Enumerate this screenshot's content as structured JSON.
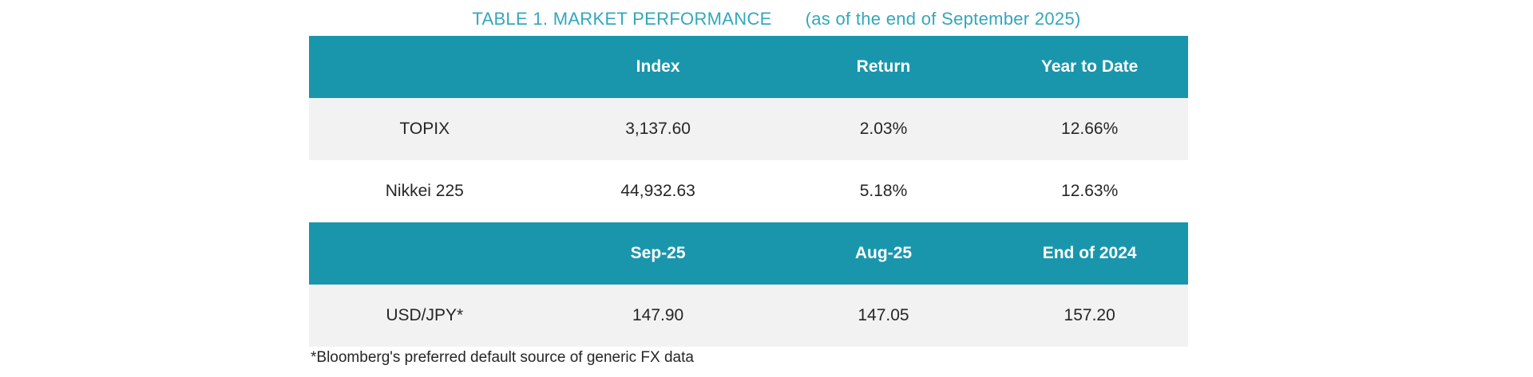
{
  "title": {
    "main": "TABLE 1. MARKET PERFORMANCE",
    "subtitle": "(as of the end of September 2025)"
  },
  "colors": {
    "header_bg": "#1A96AC",
    "title_text": "#33A7BC",
    "alt_row_bg": "#F2F2F2",
    "header_text": "#FFFFFF",
    "body_text": "#262626"
  },
  "index_table": {
    "headers": [
      "",
      "Index",
      "Return",
      "Year to Date"
    ],
    "rows": [
      {
        "label": "TOPIX",
        "index": "3,137.60",
        "return": "2.03%",
        "ytd": "12.66%"
      },
      {
        "label": "Nikkei 225",
        "index": "44,932.63",
        "return": "5.18%",
        "ytd": "12.63%"
      }
    ]
  },
  "fx_table": {
    "headers": [
      "",
      "Sep-25",
      "Aug-25",
      "End of 2024"
    ],
    "rows": [
      {
        "label": "USD/JPY*",
        "sep25": "147.90",
        "aug25": "147.05",
        "end2024": "157.20"
      }
    ]
  },
  "footnote": "*Bloomberg's preferred default source of generic FX data"
}
